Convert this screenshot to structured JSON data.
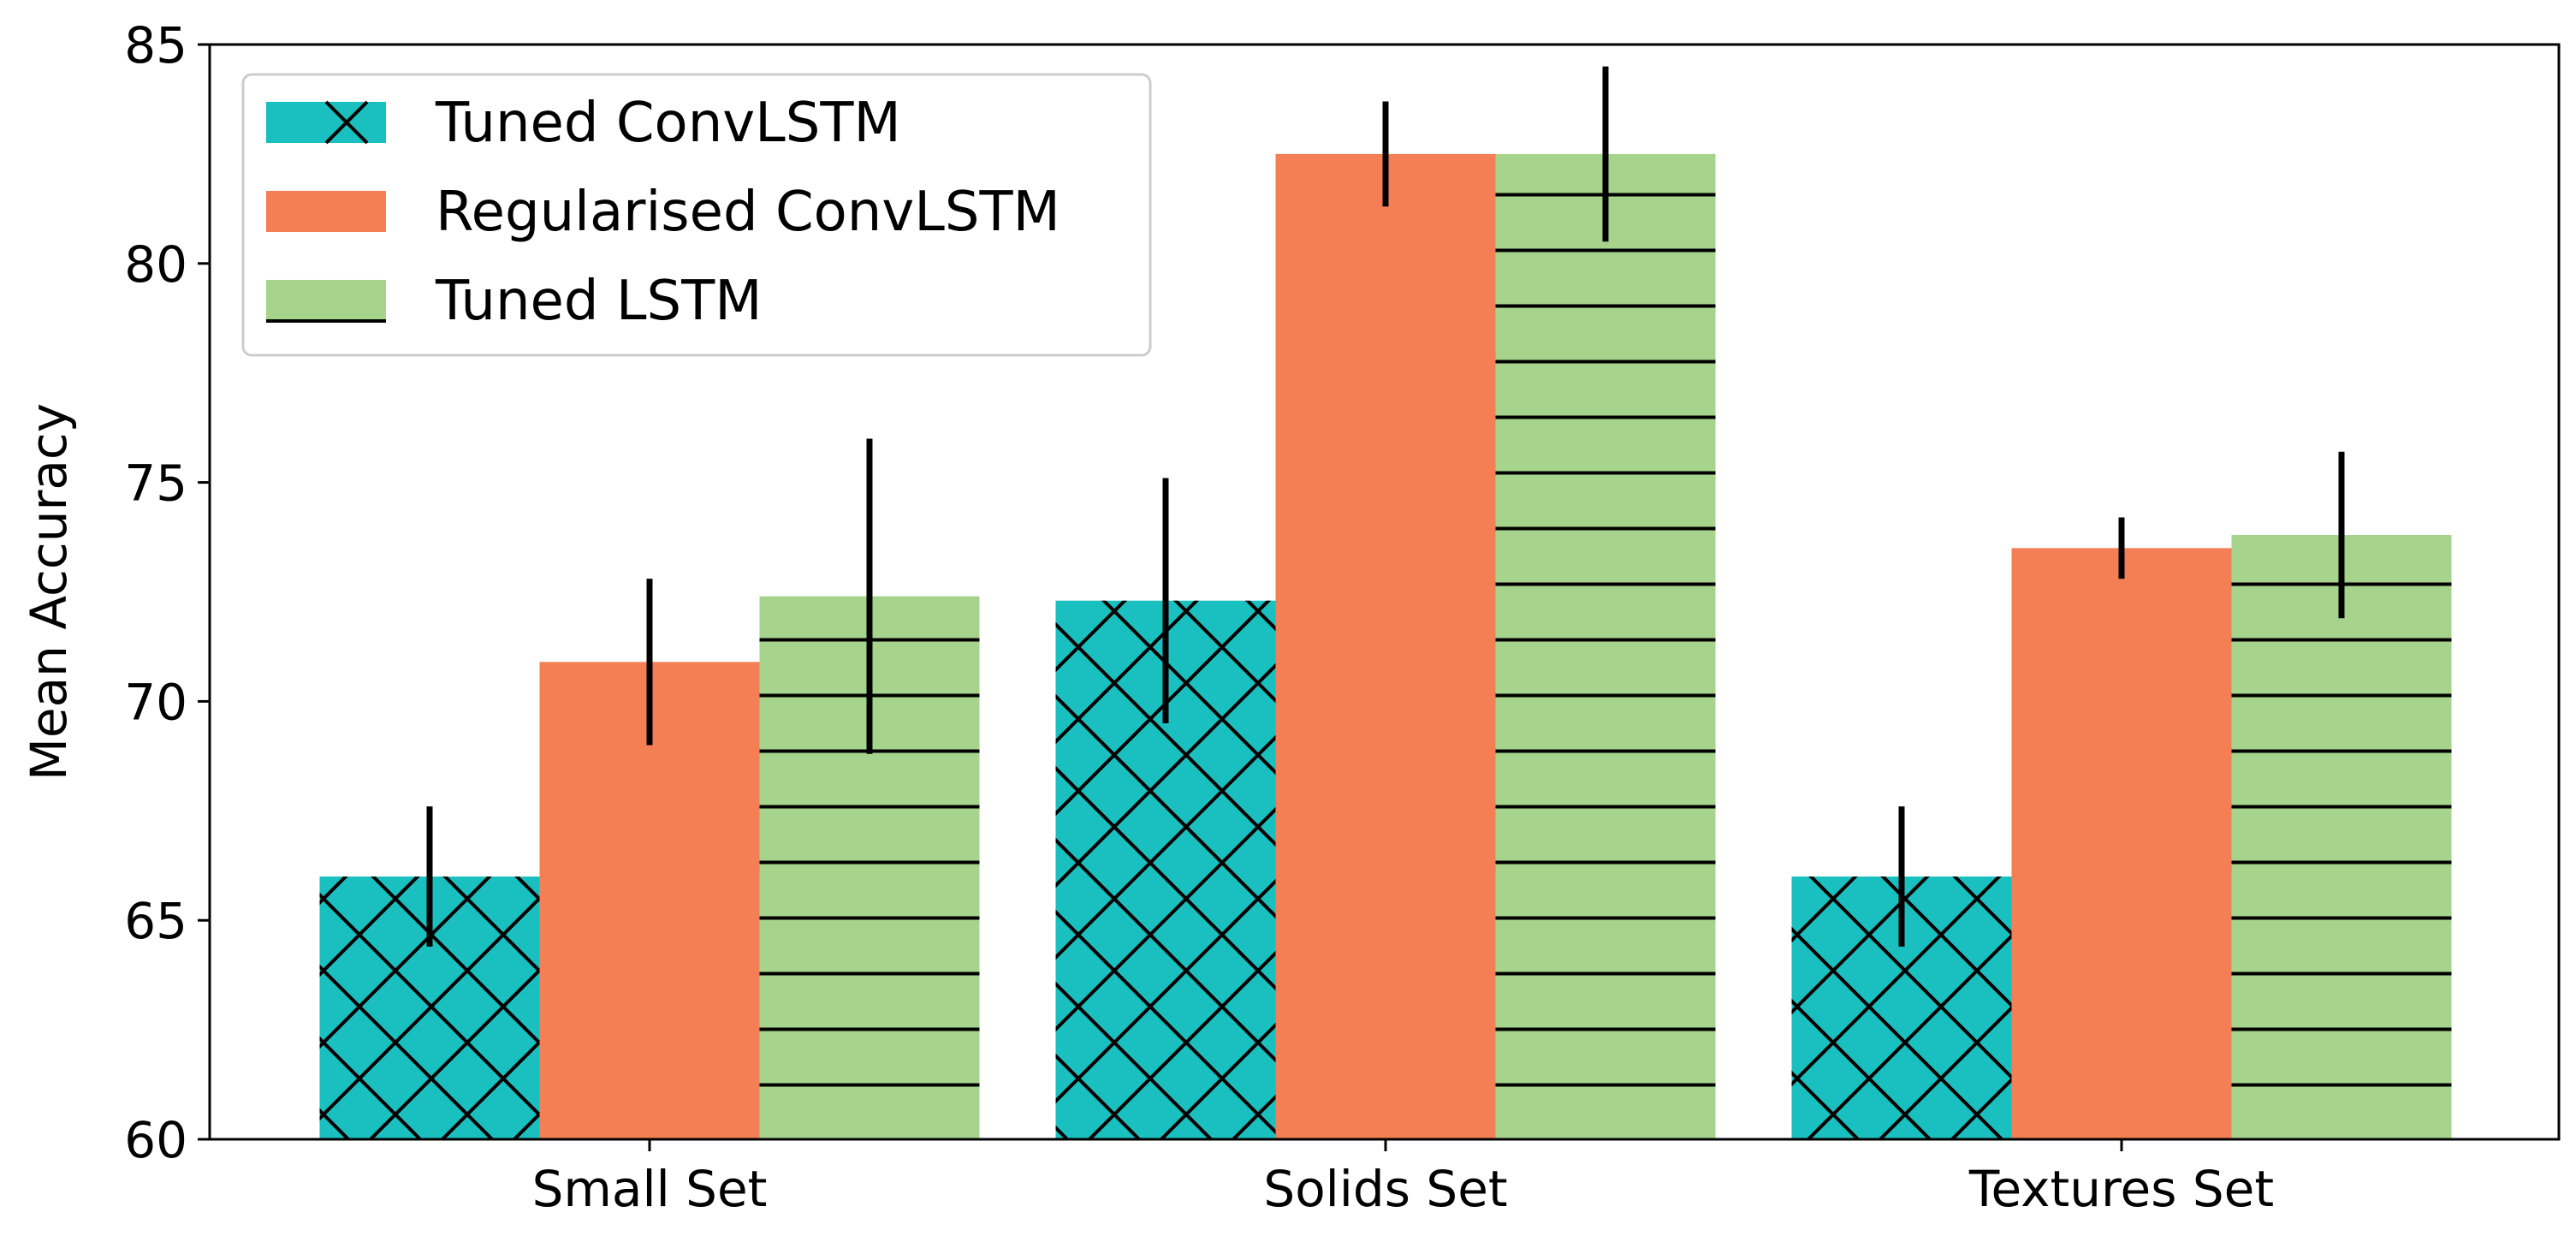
{
  "chart_data": {
    "type": "bar",
    "title": "",
    "xlabel": "",
    "ylabel": "Mean Accuracy",
    "ylim": [
      60,
      85
    ],
    "yticks": [
      60,
      65,
      70,
      75,
      80,
      85
    ],
    "categories": [
      "Small Set",
      "Solids Set",
      "Textures Set"
    ],
    "grid": false,
    "legend_position": "top-left",
    "series": [
      {
        "name": "Tuned ConvLSTM",
        "color": "#1abfbf",
        "hatch": "crosshatch",
        "values": [
          66.0,
          72.3,
          66.0
        ],
        "errors": [
          1.6,
          2.8,
          1.6
        ]
      },
      {
        "name": "Regularised ConvLSTM",
        "color": "#f47f55",
        "hatch": "none",
        "values": [
          70.9,
          82.5,
          73.5
        ],
        "errors": [
          1.9,
          1.2,
          0.7
        ]
      },
      {
        "name": "Tuned LSTM",
        "color": "#a6d48c",
        "hatch": "horizontal",
        "values": [
          72.4,
          82.5,
          73.8
        ],
        "errors": [
          3.6,
          2.0,
          1.9
        ]
      }
    ]
  }
}
